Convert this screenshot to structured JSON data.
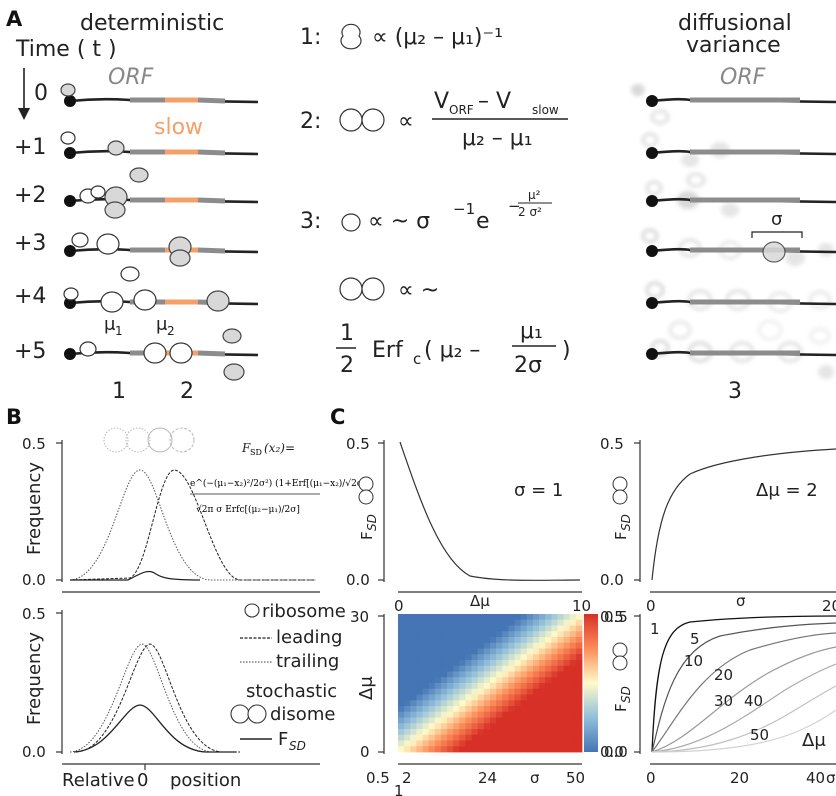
{
  "panels": {
    "a": "A",
    "b": "B",
    "c": "C"
  },
  "panel_a": {
    "left_title": "deterministic",
    "time_label": "Time ( t )",
    "time_steps": [
      "0",
      "+1",
      "+2",
      "+3",
      "+4",
      "+5"
    ],
    "orf_label": "ORF",
    "slow_label": "slow",
    "mu1": "μ",
    "mu1_sub": "1",
    "mu2": "μ",
    "mu2_sub": "2",
    "case1": "1",
    "case2": "2",
    "right_title_1": "diffusional",
    "right_title_2": "variance",
    "right_orf_label": "ORF",
    "sigma": "σ",
    "case3": "3",
    "eq1_num": "1:",
    "eq1_rhs": "∝  (μ₂ – μ₁)⁻¹",
    "eq2_num": "2:",
    "eq2_prop": "∝",
    "eq2_top": "V",
    "eq2_top_sub1": "ORF",
    "eq2_minus": " – V",
    "eq2_top_sub2": "slow",
    "eq2_bottom": "μ₂ – μ₁",
    "eq3_num": "3:",
    "eq3_rhs": "∝ ~  σ",
    "eq3_exp1": "−1",
    "eq3_e": " e",
    "eq3_exp2": "−",
    "eq3_frac_top": "μ²",
    "eq3_frac_bottom": "2 σ²",
    "eq4_rhs": "∝ ~",
    "eq5_half_top": "1",
    "eq5_half_bottom": "2",
    "eq5_erf": "Erf",
    "eq5_sub": "c",
    "eq5_paren": "(  μ₂ –",
    "eq5_frac_top": "μ₁",
    "eq5_frac_bottom": "2σ",
    "eq5_close": ")"
  },
  "panel_b": {
    "ytick_top": "0.5",
    "ytick_bottom": "0.0",
    "ylabel_top": "Frequency",
    "ylabel_bottom": "Frequency",
    "xlabel_left": "Relative",
    "xlabel_zero": "0",
    "xlabel_right": "position",
    "formula_lhs": "F",
    "formula_lhs_sub": "SD",
    "formula_lhs_arg": "(x₂)=",
    "formula_num": "e^(−(μ₁−x₂)²/2σ²) (1+Erf[(μ₁−x₂)/√2σ])",
    "formula_den": "√2π σ Erfc[(μ₂−μ₁)/2σ]",
    "legend": {
      "ribosome": "ribosome",
      "leading": "leading",
      "trailing": "trailing",
      "stochastic": "stochastic",
      "disome": "disome",
      "fsd": "F",
      "fsd_sub": "SD"
    }
  },
  "panel_c": {
    "tl": {
      "ytick_top": "0.5",
      "ytick_bottom": "0.0",
      "ylabel": "F",
      "ylabel_sub": "SD",
      "annot": "σ = 1",
      "xtick_left": "0",
      "xtick_right": "10",
      "xlabel": "Δμ"
    },
    "tr": {
      "ytick_top": "0.5",
      "ytick_bottom": "0.0",
      "ylabel": "F",
      "ylabel_sub": "SD",
      "annot": "Δμ = 2",
      "xtick_left": "0",
      "xtick_right": "20",
      "xlabel": "σ"
    },
    "bl": {
      "ytick_top": "30",
      "ytick_bottom": "0",
      "ylabel": "Δμ",
      "xticks": [
        "0.5",
        "2",
        "24",
        "50"
      ],
      "xtick_extra": "1",
      "xlabel": "σ"
    },
    "colorbar": {
      "top": "0.5",
      "bottom": "0.0",
      "label": "F",
      "label_sub": "SD"
    },
    "br": {
      "ytick_top": "0.5",
      "ytick_bottom": "0.0",
      "curve_labels": [
        "1",
        "5",
        "10",
        "20",
        "30",
        "40",
        "50"
      ],
      "legend": "Δμ",
      "xticks": [
        "0",
        "20",
        "40"
      ],
      "xlabel_partial": "σ"
    }
  }
}
